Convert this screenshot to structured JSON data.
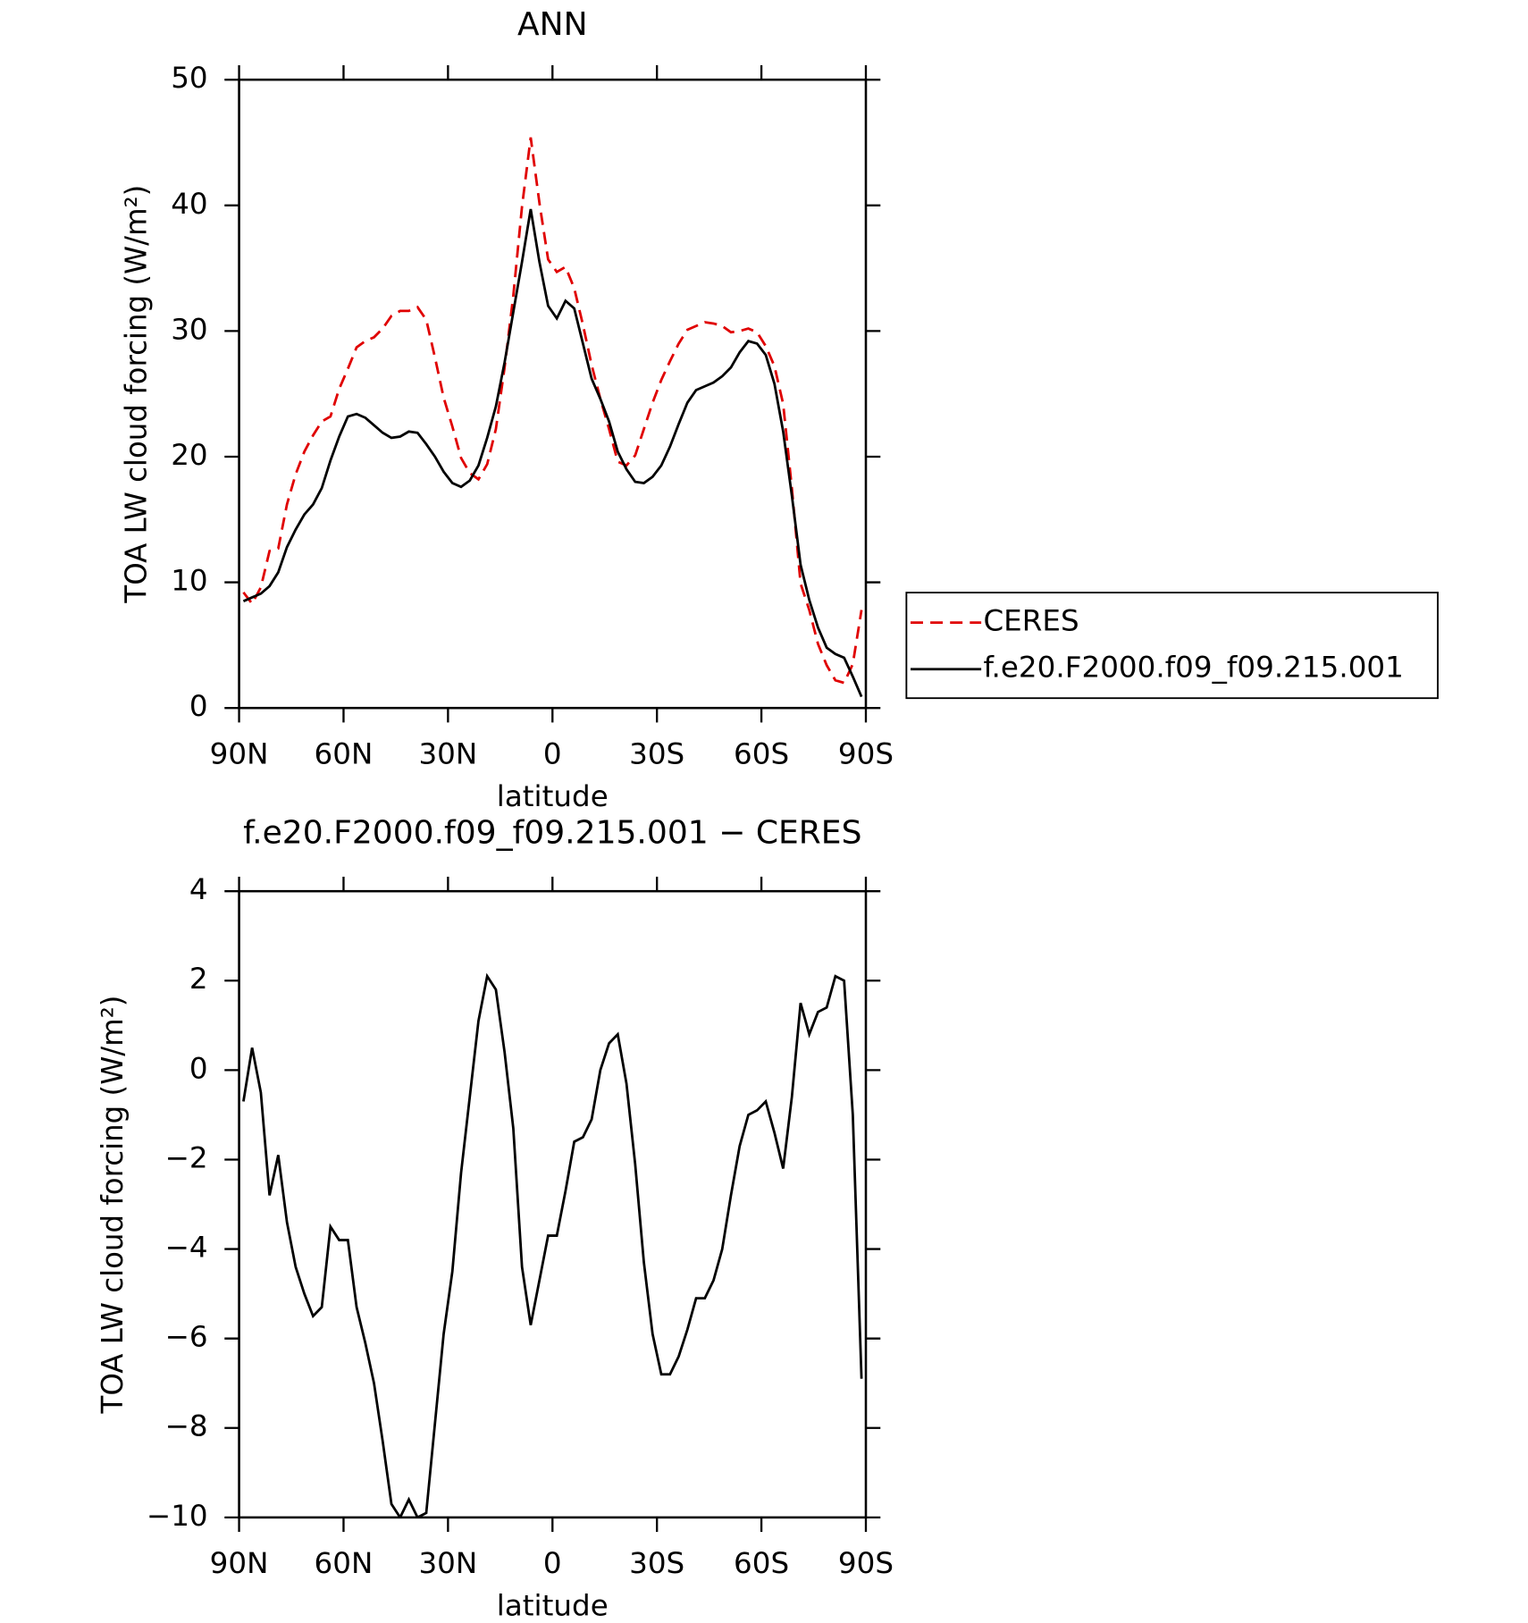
{
  "chart_data": [
    {
      "type": "line",
      "title": "ANN",
      "x_label": "latitude",
      "y_label": "TOA LW cloud forcing (W/m²)",
      "xlim": [
        90,
        -90
      ],
      "xticks": [
        {
          "value": 90,
          "label": "90N"
        },
        {
          "value": 60,
          "label": "60N"
        },
        {
          "value": 30,
          "label": "30N"
        },
        0,
        {
          "value": -30,
          "label": "30S"
        },
        {
          "value": -60,
          "label": "60S"
        },
        {
          "value": -90,
          "label": "90S"
        }
      ],
      "ylim": [
        0,
        50
      ],
      "yticks": [
        0,
        10,
        20,
        30,
        40,
        50
      ],
      "legend": "right",
      "x": [
        88.75,
        86.25,
        83.75,
        81.25,
        78.75,
        76.25,
        73.75,
        71.25,
        68.75,
        66.25,
        63.75,
        61.25,
        58.75,
        56.25,
        53.75,
        51.25,
        48.75,
        46.25,
        43.75,
        41.25,
        38.75,
        36.25,
        33.75,
        31.25,
        28.75,
        26.25,
        23.75,
        21.25,
        18.75,
        16.25,
        13.75,
        11.25,
        8.75,
        6.25,
        3.75,
        1.25,
        -1.25,
        -3.75,
        -6.25,
        -8.75,
        -11.25,
        -13.75,
        -16.25,
        -18.75,
        -21.25,
        -23.75,
        -26.25,
        -28.75,
        -31.25,
        -33.75,
        -36.25,
        -38.75,
        -41.25,
        -43.75,
        -46.25,
        -48.75,
        -51.25,
        -53.75,
        -56.25,
        -58.75,
        -61.25,
        -63.75,
        -66.25,
        -68.75,
        -71.25,
        -73.75,
        -76.25,
        -78.75,
        -81.25,
        -83.75,
        -86.25,
        -88.75
      ],
      "series": [
        {
          "name": "CERES",
          "color": "#e00000",
          "line_style": "dashed",
          "values": [
            9.2,
            8.3,
            9.6,
            12.5,
            12.7,
            16.2,
            18.6,
            20.4,
            21.7,
            22.8,
            23.2,
            25.4,
            27.0,
            28.7,
            29.2,
            29.5,
            30.2,
            31.2,
            31.6,
            31.6,
            31.9,
            30.9,
            27.9,
            24.7,
            22.4,
            19.9,
            18.7,
            18.2,
            19.4,
            22.2,
            27.1,
            32.8,
            39.9,
            45.4,
            40.2,
            35.7,
            34.7,
            35.1,
            33.4,
            30.5,
            27.3,
            24.6,
            22.2,
            19.6,
            19.3,
            20.1,
            22.2,
            24.3,
            26.1,
            27.6,
            29.0,
            30.1,
            30.4,
            30.7,
            30.6,
            30.4,
            29.9,
            30.0,
            30.2,
            29.9,
            28.8,
            27.2,
            24.2,
            17.5,
            9.9,
            7.8,
            5.1,
            3.4,
            2.2,
            2.0,
            3.5,
            7.8
          ]
        },
        {
          "name": "f.e20.F2000.f09_f09.215.001",
          "color": "#000000",
          "line_style": "solid",
          "values": [
            8.5,
            8.8,
            9.1,
            9.7,
            10.8,
            12.8,
            14.2,
            15.4,
            16.2,
            17.5,
            19.7,
            21.6,
            23.2,
            23.4,
            23.1,
            22.5,
            21.9,
            21.5,
            21.6,
            22.0,
            21.9,
            21.0,
            20.0,
            18.8,
            17.9,
            17.6,
            18.1,
            19.3,
            21.5,
            24.0,
            27.5,
            31.5,
            35.5,
            39.7,
            35.5,
            32.0,
            31.0,
            32.4,
            31.8,
            29.0,
            26.2,
            24.6,
            22.8,
            20.4,
            19.0,
            18.0,
            17.9,
            18.4,
            19.3,
            20.8,
            22.6,
            24.3,
            25.3,
            25.6,
            25.9,
            26.4,
            27.1,
            28.3,
            29.2,
            29.0,
            28.1,
            25.8,
            22.0,
            16.9,
            11.4,
            8.6,
            6.4,
            4.8,
            4.3,
            4.0,
            2.5,
            0.9
          ]
        }
      ]
    },
    {
      "type": "line",
      "title": "f.e20.F2000.f09_f09.215.001 − CERES",
      "x_label": "latitude",
      "y_label": "TOA LW cloud forcing (W/m²)",
      "xlim": [
        90,
        -90
      ],
      "xticks": [
        {
          "value": 90,
          "label": "90N"
        },
        {
          "value": 60,
          "label": "60N"
        },
        {
          "value": 30,
          "label": "30N"
        },
        0,
        {
          "value": -30,
          "label": "30S"
        },
        {
          "value": -60,
          "label": "60S"
        },
        {
          "value": -90,
          "label": "90S"
        }
      ],
      "ylim": [
        -10,
        4
      ],
      "yticks": [
        {
          "value": -10,
          "label": "−10"
        },
        {
          "value": -8,
          "label": "−8"
        },
        {
          "value": -6,
          "label": "−6"
        },
        {
          "value": -4,
          "label": "−4"
        },
        {
          "value": -2,
          "label": "−2"
        },
        0,
        2,
        4
      ],
      "x": [
        88.75,
        86.25,
        83.75,
        81.25,
        78.75,
        76.25,
        73.75,
        71.25,
        68.75,
        66.25,
        63.75,
        61.25,
        58.75,
        56.25,
        53.75,
        51.25,
        48.75,
        46.25,
        43.75,
        41.25,
        38.75,
        36.25,
        33.75,
        31.25,
        28.75,
        26.25,
        23.75,
        21.25,
        18.75,
        16.25,
        13.75,
        11.25,
        8.75,
        6.25,
        3.75,
        1.25,
        -1.25,
        -3.75,
        -6.25,
        -8.75,
        -11.25,
        -13.75,
        -16.25,
        -18.75,
        -21.25,
        -23.75,
        -26.25,
        -28.75,
        -31.25,
        -33.75,
        -36.25,
        -38.75,
        -41.25,
        -43.75,
        -46.25,
        -48.75,
        -51.25,
        -53.75,
        -56.25,
        -58.75,
        -61.25,
        -63.75,
        -66.25,
        -68.75,
        -71.25,
        -73.75,
        -76.25,
        -78.75,
        -81.25,
        -83.75,
        -86.25,
        -88.75
      ],
      "series": [
        {
          "color": "#000000",
          "line_style": "solid",
          "values": [
            -0.7,
            0.5,
            -0.5,
            -2.8,
            -1.9,
            -3.4,
            -4.4,
            -5.0,
            -5.5,
            -5.3,
            -3.5,
            -3.8,
            -3.8,
            -5.3,
            -6.1,
            -7.0,
            -8.3,
            -9.7,
            -10.0,
            -9.6,
            -10.0,
            -9.9,
            -7.9,
            -5.9,
            -4.5,
            -2.3,
            -0.6,
            1.1,
            2.1,
            1.8,
            0.4,
            -1.3,
            -4.4,
            -5.7,
            -4.7,
            -3.7,
            -3.7,
            -2.7,
            -1.6,
            -1.5,
            -1.1,
            0.0,
            0.6,
            0.8,
            -0.3,
            -2.1,
            -4.3,
            -5.9,
            -6.8,
            -6.8,
            -6.4,
            -5.8,
            -5.1,
            -5.1,
            -4.7,
            -4.0,
            -2.8,
            -1.7,
            -1.0,
            -0.9,
            -0.7,
            -1.4,
            -2.2,
            -0.6,
            1.5,
            0.8,
            1.3,
            1.4,
            2.1,
            2.0,
            -1.0,
            -6.9
          ]
        }
      ]
    }
  ]
}
